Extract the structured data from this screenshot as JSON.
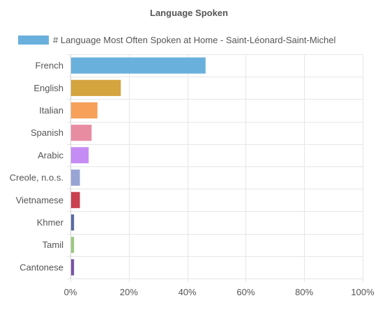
{
  "chart_data": {
    "type": "bar",
    "orientation": "horizontal",
    "title": "Language Spoken",
    "legend": {
      "position": "top",
      "entries": [
        {
          "name": "# Language Most Often Spoken at Home - Saint-Léonard-Saint-Michel",
          "color": "#6ab0dd"
        }
      ]
    },
    "categories": [
      "French",
      "English",
      "Italian",
      "Spanish",
      "Arabic",
      "Creole, n.o.s.",
      "Vietnamese",
      "Khmer",
      "Tamil",
      "Cantonese"
    ],
    "series": [
      {
        "name": "# Language Most Often Spoken at Home - Saint-Léonard-Saint-Michel",
        "values": [
          46,
          17,
          9,
          7,
          6,
          3,
          3,
          1,
          1,
          1
        ],
        "colors": [
          "#6ab0dd",
          "#d4a43f",
          "#f7a05a",
          "#e88ca2",
          "#c58cf5",
          "#98a4d4",
          "#c9404f",
          "#5a6aa3",
          "#9cc880",
          "#7b54a4"
        ]
      }
    ],
    "x_axis": {
      "ticks": [
        "0%",
        "20%",
        "40%",
        "60%",
        "80%",
        "100%"
      ],
      "range": [
        0,
        100
      ],
      "grid": true
    },
    "y_axis": {
      "grid": true
    }
  }
}
